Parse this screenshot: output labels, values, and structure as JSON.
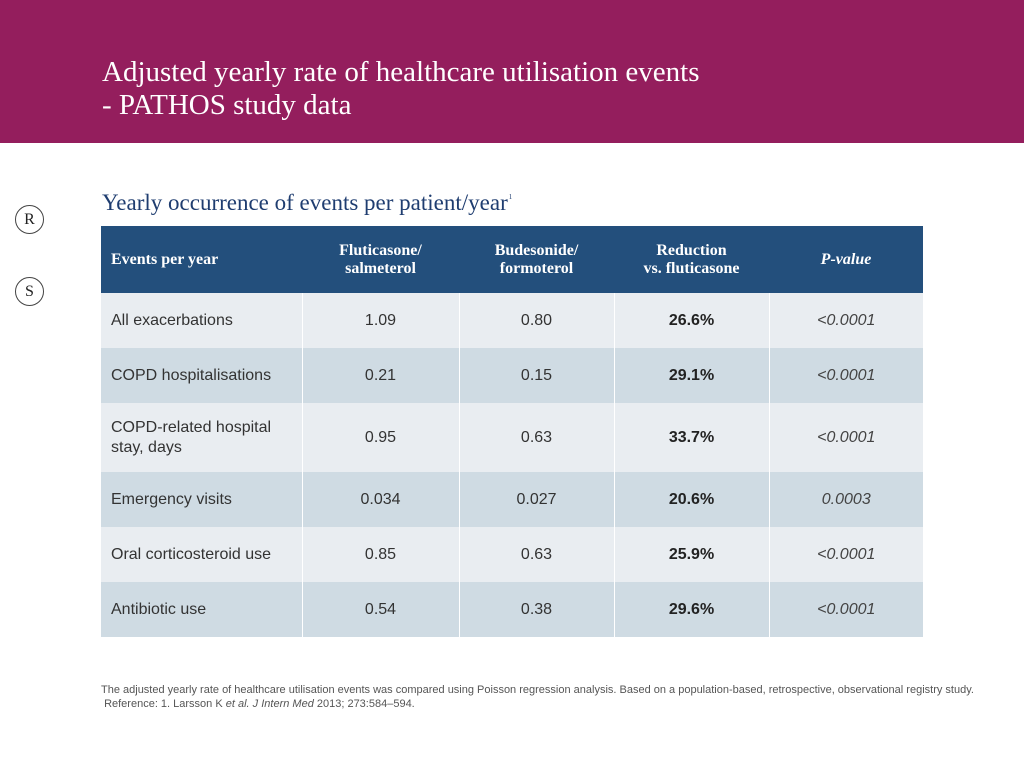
{
  "header": {
    "title_line1": "Adjusted yearly rate of healthcare utilisation events",
    "title_line2": "- PATHOS study data"
  },
  "nav": {
    "r_label": "R",
    "s_label": "S"
  },
  "subtitle": {
    "text": "Yearly occurrence of events per patient/year",
    "sup": "1"
  },
  "table": {
    "headers": {
      "event": "Events per year",
      "flu_line1": "Fluticasone/",
      "flu_line2": "salmeterol",
      "bud_line1": "Budesonide/",
      "bud_line2": "formoterol",
      "red_line1": "Reduction",
      "red_line2": "vs. fluticasone",
      "p": "P-value"
    },
    "rows": [
      {
        "event": "All exacerbations",
        "flu": "1.09",
        "bud": "0.80",
        "reduction": "26.6%",
        "p": "<0.0001"
      },
      {
        "event": "COPD hospitalisations",
        "flu": "0.21",
        "bud": "0.15",
        "reduction": "29.1%",
        "p": "<0.0001"
      },
      {
        "event": "COPD-related hospital stay, days",
        "flu": "0.95",
        "bud": "0.63",
        "reduction": "33.7%",
        "p": "<0.0001"
      },
      {
        "event": "Emergency visits",
        "flu": "0.034",
        "bud": "0.027",
        "reduction": "20.6%",
        "p": "0.0003"
      },
      {
        "event": "Oral corticosteroid use",
        "flu": "0.85",
        "bud": "0.63",
        "reduction": "25.9%",
        "p": "<0.0001"
      },
      {
        "event": "Antibiotic use",
        "flu": "0.54",
        "bud": "0.38",
        "reduction": "29.6%",
        "p": "<0.0001"
      }
    ]
  },
  "footnote": {
    "line1": "The adjusted yearly rate of healthcare utilisation events was compared using Poisson regression analysis. Based on a population-based, retrospective, observational registry study.",
    "ref_prefix": "Reference: 1. Larsson K ",
    "ref_etal": "et al.",
    "ref_journal": "J Intern Med",
    "ref_rest": " 2013; 273:584–594."
  },
  "colors": {
    "header_bg": "#941e5d",
    "table_header_bg": "#234f7c",
    "row_light": "#e9edf1",
    "row_dark": "#cfdbe3",
    "subtitle": "#1f3d70"
  }
}
